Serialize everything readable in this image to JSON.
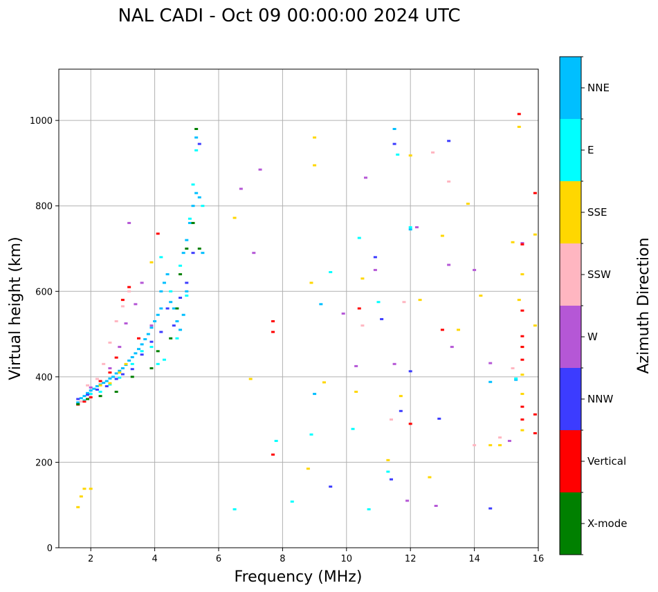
{
  "chart_data": {
    "type": "scatter",
    "title": "NAL CADI - Oct 09 00:00:00 2024 UTC",
    "xlabel": "Frequency (MHz)",
    "ylabel": "Virtual height (km)",
    "xlim": [
      1,
      16
    ],
    "ylim": [
      0,
      1120
    ],
    "xticks": [
      2,
      4,
      6,
      8,
      10,
      12,
      14,
      16
    ],
    "yticks": [
      0,
      200,
      400,
      600,
      800,
      1000
    ],
    "grid": true,
    "colorbar": {
      "label": "Azimuth Direction",
      "categories": [
        {
          "name": "X-mode",
          "color": "#008000"
        },
        {
          "name": "Vertical",
          "color": "#ff0000"
        },
        {
          "name": "NNW",
          "color": "#3c3cff"
        },
        {
          "name": "W",
          "color": "#b557d6"
        },
        {
          "name": "SSW",
          "color": "#ffb6c1"
        },
        {
          "name": "SSE",
          "color": "#ffd700"
        },
        {
          "name": "E",
          "color": "#00ffff"
        },
        {
          "name": "NNE",
          "color": "#00bfff"
        }
      ]
    },
    "series": [
      {
        "name": "NNE",
        "points": [
          [
            1.6,
            340
          ],
          [
            1.7,
            350
          ],
          [
            1.8,
            355
          ],
          [
            1.9,
            362
          ],
          [
            2.0,
            368
          ],
          [
            2.1,
            372
          ],
          [
            2.2,
            378
          ],
          [
            2.3,
            382
          ],
          [
            2.4,
            386
          ],
          [
            2.5,
            390
          ],
          [
            2.6,
            396
          ],
          [
            2.7,
            400
          ],
          [
            2.8,
            408
          ],
          [
            2.9,
            414
          ],
          [
            3.0,
            420
          ],
          [
            3.1,
            428
          ],
          [
            3.2,
            438
          ],
          [
            3.3,
            446
          ],
          [
            3.4,
            455
          ],
          [
            3.5,
            465
          ],
          [
            3.6,
            476
          ],
          [
            3.7,
            488
          ],
          [
            3.8,
            500
          ],
          [
            3.9,
            515
          ],
          [
            4.0,
            530
          ],
          [
            4.1,
            545
          ],
          [
            4.2,
            560
          ],
          [
            4.2,
            600
          ],
          [
            4.3,
            620
          ],
          [
            4.4,
            640
          ],
          [
            4.5,
            575
          ],
          [
            4.6,
            560
          ],
          [
            4.7,
            530
          ],
          [
            4.8,
            510
          ],
          [
            4.9,
            545
          ],
          [
            4.9,
            690
          ],
          [
            5.0,
            600
          ],
          [
            5.0,
            720
          ],
          [
            5.1,
            760
          ],
          [
            5.2,
            800
          ],
          [
            5.3,
            830
          ],
          [
            5.3,
            960
          ],
          [
            5.4,
            820
          ],
          [
            5.5,
            690
          ],
          [
            9.0,
            360
          ],
          [
            9.2,
            570
          ],
          [
            11.5,
            980
          ],
          [
            12.0,
            745
          ],
          [
            14.5,
            388
          ],
          [
            15.3,
            393
          ]
        ]
      },
      {
        "name": "E",
        "points": [
          [
            1.8,
            345
          ],
          [
            2.0,
            360
          ],
          [
            2.3,
            365
          ],
          [
            2.6,
            382
          ],
          [
            2.9,
            398
          ],
          [
            3.3,
            430
          ],
          [
            3.6,
            460
          ],
          [
            3.9,
            470
          ],
          [
            4.1,
            430
          ],
          [
            4.2,
            680
          ],
          [
            4.3,
            440
          ],
          [
            4.5,
            600
          ],
          [
            4.7,
            490
          ],
          [
            4.8,
            660
          ],
          [
            5.0,
            590
          ],
          [
            5.1,
            770
          ],
          [
            5.2,
            850
          ],
          [
            5.3,
            930
          ],
          [
            5.5,
            800
          ],
          [
            6.5,
            90
          ],
          [
            7.8,
            250
          ],
          [
            8.3,
            108
          ],
          [
            8.9,
            265
          ],
          [
            9.5,
            645
          ],
          [
            10.2,
            278
          ],
          [
            10.4,
            725
          ],
          [
            10.7,
            90
          ],
          [
            11.0,
            575
          ],
          [
            11.3,
            178
          ],
          [
            11.6,
            920
          ],
          [
            12.0,
            750
          ],
          [
            15.3,
            396
          ]
        ]
      },
      {
        "name": "NNW",
        "points": [
          [
            1.6,
            348
          ],
          [
            1.9,
            358
          ],
          [
            2.2,
            370
          ],
          [
            2.5,
            378
          ],
          [
            2.8,
            395
          ],
          [
            3.0,
            406
          ],
          [
            3.3,
            418
          ],
          [
            3.6,
            452
          ],
          [
            3.9,
            482
          ],
          [
            4.2,
            505
          ],
          [
            4.4,
            560
          ],
          [
            4.6,
            520
          ],
          [
            4.8,
            585
          ],
          [
            5.0,
            620
          ],
          [
            5.2,
            690
          ],
          [
            5.4,
            945
          ],
          [
            9.5,
            143
          ],
          [
            10.9,
            680
          ],
          [
            11.1,
            535
          ],
          [
            11.4,
            160
          ],
          [
            11.5,
            945
          ],
          [
            11.7,
            320
          ],
          [
            12.0,
            413
          ],
          [
            12.9,
            302
          ],
          [
            13.2,
            952
          ],
          [
            14.5,
            92
          ]
        ]
      },
      {
        "name": "W",
        "points": [
          [
            2.0,
            375
          ],
          [
            2.6,
            420
          ],
          [
            2.9,
            470
          ],
          [
            3.1,
            525
          ],
          [
            3.2,
            760
          ],
          [
            3.4,
            570
          ],
          [
            3.6,
            620
          ],
          [
            3.9,
            520
          ],
          [
            6.7,
            840
          ],
          [
            7.1,
            690
          ],
          [
            7.3,
            885
          ],
          [
            9.9,
            548
          ],
          [
            10.3,
            425
          ],
          [
            10.6,
            866
          ],
          [
            10.9,
            650
          ],
          [
            11.5,
            430
          ],
          [
            11.9,
            110
          ],
          [
            12.2,
            750
          ],
          [
            12.8,
            98
          ],
          [
            13.2,
            662
          ],
          [
            13.3,
            470
          ],
          [
            14.0,
            650
          ],
          [
            14.5,
            432
          ],
          [
            15.1,
            250
          ],
          [
            15.5,
            713
          ]
        ]
      },
      {
        "name": "SSW",
        "points": [
          [
            1.7,
            342
          ],
          [
            1.9,
            380
          ],
          [
            2.2,
            395
          ],
          [
            2.4,
            430
          ],
          [
            2.6,
            480
          ],
          [
            2.8,
            530
          ],
          [
            3.0,
            565
          ],
          [
            3.2,
            600
          ],
          [
            10.5,
            520
          ],
          [
            11.4,
            300
          ],
          [
            11.8,
            575
          ],
          [
            12.7,
            925
          ],
          [
            13.2,
            857
          ],
          [
            14.0,
            240
          ],
          [
            14.8,
            258
          ],
          [
            15.2,
            420
          ]
        ]
      },
      {
        "name": "SSE",
        "points": [
          [
            1.6,
            95
          ],
          [
            1.7,
            120
          ],
          [
            1.8,
            138
          ],
          [
            2.0,
            138
          ],
          [
            2.3,
            380
          ],
          [
            2.6,
            385
          ],
          [
            2.9,
            410
          ],
          [
            3.1,
            430
          ],
          [
            3.9,
            668
          ],
          [
            6.5,
            772
          ],
          [
            7.0,
            395
          ],
          [
            8.8,
            185
          ],
          [
            8.9,
            620
          ],
          [
            9.0,
            960
          ],
          [
            9.0,
            895
          ],
          [
            9.3,
            387
          ],
          [
            10.3,
            365
          ],
          [
            10.5,
            630
          ],
          [
            11.3,
            205
          ],
          [
            11.7,
            355
          ],
          [
            12.0,
            918
          ],
          [
            12.3,
            580
          ],
          [
            12.6,
            165
          ],
          [
            13.0,
            730
          ],
          [
            13.5,
            510
          ],
          [
            13.8,
            805
          ],
          [
            14.2,
            590
          ],
          [
            14.5,
            240
          ],
          [
            14.8,
            240
          ],
          [
            15.2,
            715
          ],
          [
            15.4,
            580
          ],
          [
            15.4,
            985
          ],
          [
            15.5,
            640
          ],
          [
            15.5,
            470
          ],
          [
            15.5,
            405
          ],
          [
            15.5,
            360
          ],
          [
            15.5,
            275
          ],
          [
            15.9,
            520
          ],
          [
            15.9,
            733
          ]
        ]
      },
      {
        "name": "Vertical",
        "points": [
          [
            1.6,
            335
          ],
          [
            1.8,
            342
          ],
          [
            2.0,
            352
          ],
          [
            2.3,
            390
          ],
          [
            2.6,
            410
          ],
          [
            2.8,
            445
          ],
          [
            3.0,
            580
          ],
          [
            3.2,
            610
          ],
          [
            3.5,
            490
          ],
          [
            4.1,
            735
          ],
          [
            7.7,
            530
          ],
          [
            7.7,
            505
          ],
          [
            7.7,
            218
          ],
          [
            10.4,
            560
          ],
          [
            12.0,
            290
          ],
          [
            15.4,
            1015
          ],
          [
            15.5,
            710
          ],
          [
            15.5,
            555
          ],
          [
            15.5,
            495
          ],
          [
            15.5,
            470
          ],
          [
            15.5,
            440
          ],
          [
            15.5,
            330
          ],
          [
            15.5,
            300
          ],
          [
            15.9,
            830
          ],
          [
            15.9,
            312
          ],
          [
            15.9,
            268
          ],
          [
            13.0,
            510
          ]
        ]
      },
      {
        "name": "X-mode",
        "points": [
          [
            1.6,
            336
          ],
          [
            1.9,
            348
          ],
          [
            2.3,
            355
          ],
          [
            2.8,
            365
          ],
          [
            3.3,
            400
          ],
          [
            3.9,
            420
          ],
          [
            4.1,
            460
          ],
          [
            4.5,
            490
          ],
          [
            4.7,
            560
          ],
          [
            4.8,
            640
          ],
          [
            5.0,
            700
          ],
          [
            5.2,
            760
          ],
          [
            5.3,
            980
          ],
          [
            5.4,
            700
          ]
        ]
      }
    ]
  }
}
